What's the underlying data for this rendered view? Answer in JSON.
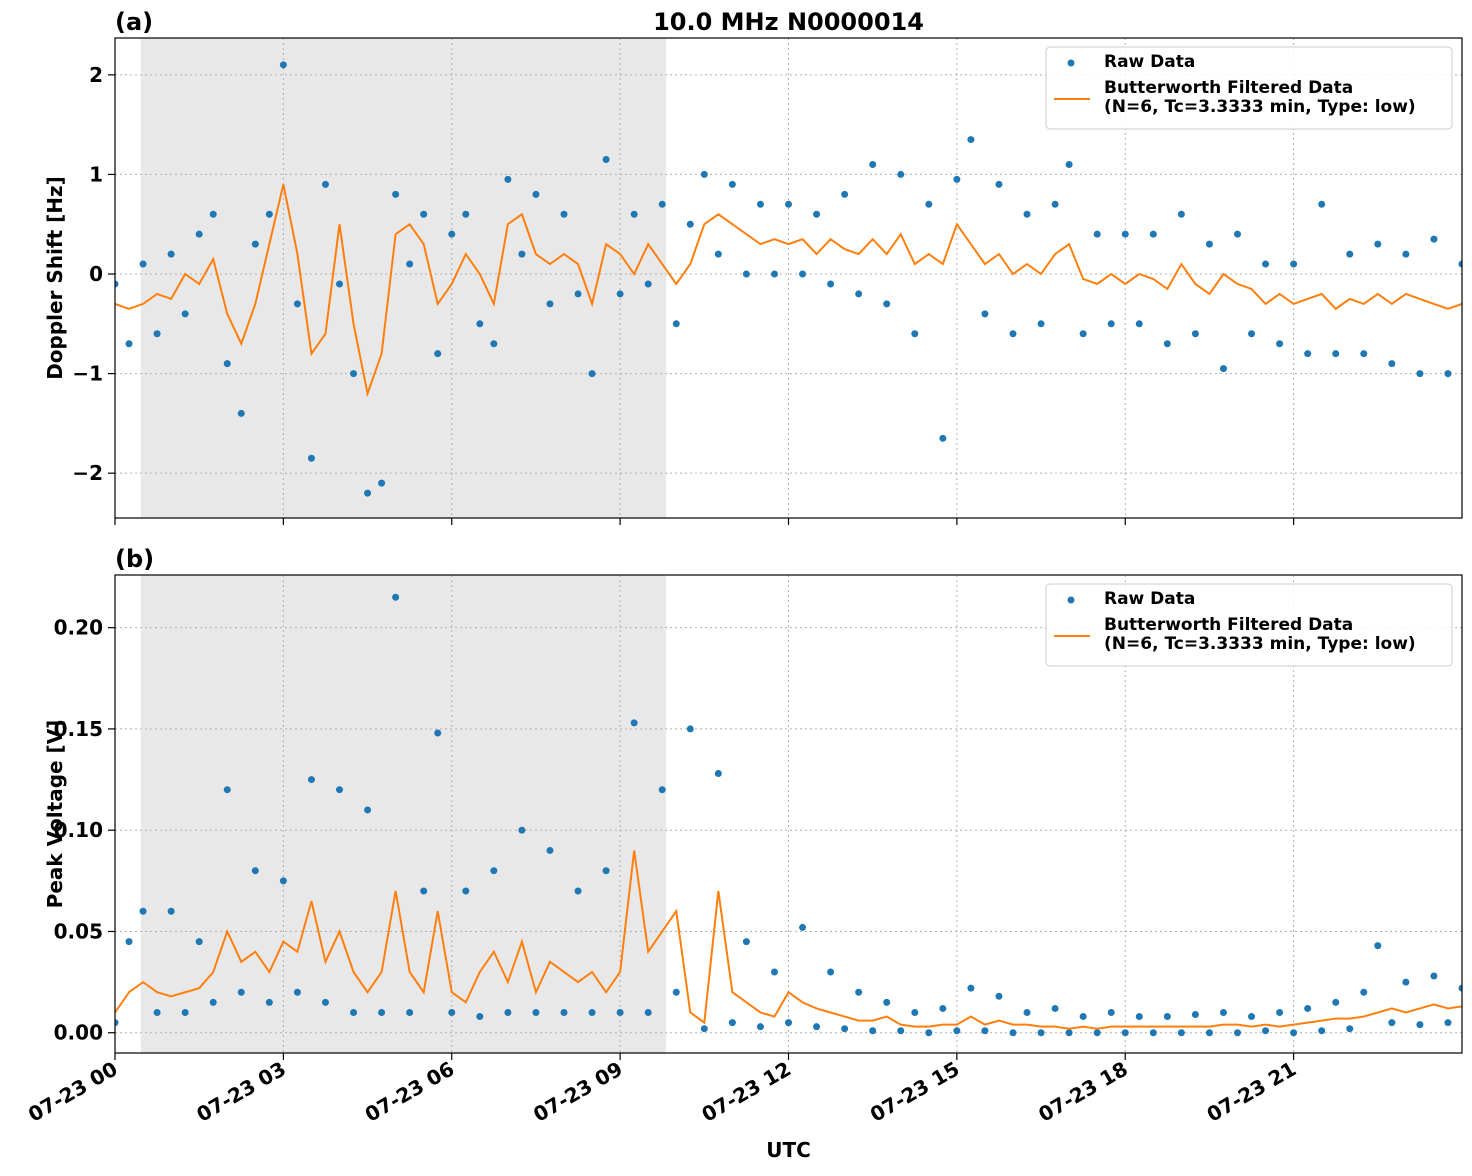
{
  "chart_data": [
    {
      "type": "line",
      "title": "10.0 MHz N0000014",
      "panel_label": "(a)",
      "ylabel": "Doppler Shift [Hz]",
      "xlim": [
        0,
        24
      ],
      "xticks": [
        0,
        3,
        6,
        9,
        12,
        15,
        18,
        21
      ],
      "ylim": [
        -2.45,
        2.37
      ],
      "yticks": [
        {
          "value": -2,
          "label": "−2"
        },
        {
          "value": -1,
          "label": "−1"
        },
        {
          "value": 0,
          "label": "0"
        },
        {
          "value": 1,
          "label": "1"
        },
        {
          "value": 2,
          "label": "2"
        }
      ],
      "grid": true,
      "legend": "upper right",
      "shaded_span": [
        0.46,
        9.82
      ],
      "shade_color": "#e8e8e8",
      "x": [
        0,
        0.25,
        0.5,
        0.75,
        1,
        1.25,
        1.5,
        1.75,
        2,
        2.25,
        2.5,
        2.75,
        3,
        3.25,
        3.5,
        3.75,
        4,
        4.25,
        4.5,
        4.75,
        5,
        5.25,
        5.5,
        5.75,
        6,
        6.25,
        6.5,
        6.75,
        7,
        7.25,
        7.5,
        7.75,
        8,
        8.25,
        8.5,
        8.75,
        9,
        9.25,
        9.5,
        9.75,
        10,
        10.25,
        10.5,
        10.75,
        11,
        11.25,
        11.5,
        11.75,
        12,
        12.25,
        12.5,
        12.75,
        13,
        13.25,
        13.5,
        13.75,
        14,
        14.25,
        14.5,
        14.75,
        15,
        15.25,
        15.5,
        15.75,
        16,
        16.25,
        16.5,
        16.75,
        17,
        17.25,
        17.5,
        17.75,
        18,
        18.25,
        18.5,
        18.75,
        19,
        19.25,
        19.5,
        19.75,
        20,
        20.25,
        20.5,
        20.75,
        21,
        21.25,
        21.5,
        21.75,
        22,
        22.25,
        22.5,
        22.75,
        23,
        23.25,
        23.5,
        23.75,
        24
      ],
      "series": [
        {
          "name": "Raw Data",
          "kind": "scatter",
          "color": "#1f77b4",
          "values": [
            -0.1,
            -0.7,
            0.1,
            -0.6,
            0.2,
            -0.4,
            0.4,
            0.6,
            -0.9,
            -1.4,
            0.3,
            0.6,
            2.1,
            -0.3,
            -1.85,
            0.9,
            -0.1,
            -1.0,
            -2.2,
            -2.1,
            0.8,
            0.1,
            0.6,
            -0.8,
            0.4,
            0.6,
            -0.5,
            -0.7,
            0.95,
            0.2,
            0.8,
            -0.3,
            0.6,
            -0.2,
            -1.0,
            1.15,
            -0.2,
            0.6,
            -0.1,
            0.7,
            -0.5,
            0.5,
            1.0,
            0.2,
            0.9,
            0.0,
            0.7,
            0.0,
            0.7,
            0.0,
            0.6,
            -0.1,
            0.8,
            -0.2,
            1.1,
            -0.3,
            1.0,
            -0.6,
            0.7,
            -1.65,
            0.95,
            1.35,
            -0.4,
            0.9,
            -0.6,
            0.6,
            -0.5,
            0.7,
            1.1,
            -0.6,
            0.4,
            -0.5,
            0.4,
            -0.5,
            0.4,
            -0.7,
            0.6,
            -0.6,
            0.3,
            -0.95,
            0.4,
            -0.6,
            0.1,
            -0.7,
            0.1,
            -0.8,
            0.7,
            -0.8,
            0.2,
            -0.8,
            0.3,
            -0.9,
            0.2,
            -1.0,
            0.35,
            -1.0,
            0.1
          ]
        },
        {
          "name": "Butterworth Filtered Data\n(N=6, Tc=3.3333 min, Type: low)",
          "kind": "line",
          "color": "#ff7f0e",
          "values": [
            -0.3,
            -0.35,
            -0.3,
            -0.2,
            -0.25,
            0.0,
            -0.1,
            0.15,
            -0.4,
            -0.7,
            -0.3,
            0.3,
            0.9,
            0.2,
            -0.8,
            -0.6,
            0.5,
            -0.5,
            -1.2,
            -0.8,
            0.4,
            0.5,
            0.3,
            -0.3,
            -0.1,
            0.2,
            0.0,
            -0.3,
            0.5,
            0.6,
            0.2,
            0.1,
            0.2,
            0.1,
            -0.3,
            0.3,
            0.2,
            0.0,
            0.3,
            0.1,
            -0.1,
            0.1,
            0.5,
            0.6,
            0.5,
            0.4,
            0.3,
            0.35,
            0.3,
            0.35,
            0.2,
            0.35,
            0.25,
            0.2,
            0.35,
            0.2,
            0.4,
            0.1,
            0.2,
            0.1,
            0.5,
            0.3,
            0.1,
            0.2,
            0.0,
            0.1,
            0.0,
            0.2,
            0.3,
            -0.05,
            -0.1,
            0.0,
            -0.1,
            0.0,
            -0.05,
            -0.15,
            0.1,
            -0.1,
            -0.2,
            0.0,
            -0.1,
            -0.15,
            -0.3,
            -0.2,
            -0.3,
            -0.25,
            -0.2,
            -0.35,
            -0.25,
            -0.3,
            -0.2,
            -0.3,
            -0.2,
            -0.25,
            -0.3,
            -0.35,
            -0.3
          ]
        }
      ]
    },
    {
      "type": "line",
      "panel_label": "(b)",
      "ylabel": "Peak Voltage [V]",
      "xlabel": "UTC",
      "xlim": [
        0,
        24
      ],
      "xticks": [
        {
          "value": 0,
          "label": "07-23 00"
        },
        {
          "value": 3,
          "label": "07-23 03"
        },
        {
          "value": 6,
          "label": "07-23 06"
        },
        {
          "value": 9,
          "label": "07-23 09"
        },
        {
          "value": 12,
          "label": "07-23 12"
        },
        {
          "value": 15,
          "label": "07-23 15"
        },
        {
          "value": 18,
          "label": "07-23 18"
        },
        {
          "value": 21,
          "label": "07-23 21"
        }
      ],
      "ylim": [
        -0.01,
        0.226
      ],
      "yticks": [
        {
          "value": 0,
          "label": "0.00"
        },
        {
          "value": 0.05,
          "label": "0.05"
        },
        {
          "value": 0.1,
          "label": "0.10"
        },
        {
          "value": 0.15,
          "label": "0.15"
        },
        {
          "value": 0.2,
          "label": "0.20"
        }
      ],
      "grid": true,
      "legend": "upper right",
      "shaded_span": [
        0.46,
        9.82
      ],
      "shade_color": "#e8e8e8",
      "x": [
        0,
        0.25,
        0.5,
        0.75,
        1,
        1.25,
        1.5,
        1.75,
        2,
        2.25,
        2.5,
        2.75,
        3,
        3.25,
        3.5,
        3.75,
        4,
        4.25,
        4.5,
        4.75,
        5,
        5.25,
        5.5,
        5.75,
        6,
        6.25,
        6.5,
        6.75,
        7,
        7.25,
        7.5,
        7.75,
        8,
        8.25,
        8.5,
        8.75,
        9,
        9.25,
        9.5,
        9.75,
        10,
        10.25,
        10.5,
        10.75,
        11,
        11.25,
        11.5,
        11.75,
        12,
        12.25,
        12.5,
        12.75,
        13,
        13.25,
        13.5,
        13.75,
        14,
        14.25,
        14.5,
        14.75,
        15,
        15.25,
        15.5,
        15.75,
        16,
        16.25,
        16.5,
        16.75,
        17,
        17.25,
        17.5,
        17.75,
        18,
        18.25,
        18.5,
        18.75,
        19,
        19.25,
        19.5,
        19.75,
        20,
        20.25,
        20.5,
        20.75,
        21,
        21.25,
        21.5,
        21.75,
        22,
        22.25,
        22.5,
        22.75,
        23,
        23.25,
        23.5,
        23.75,
        24
      ],
      "series": [
        {
          "name": "Raw Data",
          "kind": "scatter",
          "color": "#1f77b4",
          "values": [
            0.005,
            0.045,
            0.06,
            0.01,
            0.06,
            0.01,
            0.045,
            0.015,
            0.12,
            0.02,
            0.08,
            0.015,
            0.075,
            0.02,
            0.125,
            0.015,
            0.12,
            0.01,
            0.11,
            0.01,
            0.215,
            0.01,
            0.07,
            0.148,
            0.01,
            0.07,
            0.008,
            0.08,
            0.01,
            0.1,
            0.01,
            0.09,
            0.01,
            0.07,
            0.01,
            0.08,
            0.01,
            0.153,
            0.01,
            0.12,
            0.02,
            0.15,
            0.002,
            0.128,
            0.005,
            0.045,
            0.003,
            0.03,
            0.005,
            0.052,
            0.003,
            0.03,
            0.002,
            0.02,
            0.001,
            0.015,
            0.001,
            0.01,
            0.0,
            0.012,
            0.001,
            0.022,
            0.001,
            0.018,
            0.0,
            0.01,
            0.0,
            0.012,
            0.0,
            0.008,
            0.0,
            0.01,
            0.0,
            0.008,
            0.0,
            0.008,
            0.0,
            0.009,
            0.0,
            0.01,
            0.0,
            0.008,
            0.001,
            0.01,
            0.0,
            0.012,
            0.001,
            0.015,
            0.002,
            0.02,
            0.043,
            0.005,
            0.025,
            0.004,
            0.028,
            0.005,
            0.022
          ]
        },
        {
          "name": "Butterworth Filtered Data\n(N=6, Tc=3.3333 min, Type: low)",
          "kind": "line",
          "color": "#ff7f0e",
          "values": [
            0.01,
            0.02,
            0.025,
            0.02,
            0.018,
            0.02,
            0.022,
            0.03,
            0.05,
            0.035,
            0.04,
            0.03,
            0.045,
            0.04,
            0.065,
            0.035,
            0.05,
            0.03,
            0.02,
            0.03,
            0.07,
            0.03,
            0.02,
            0.06,
            0.02,
            0.015,
            0.03,
            0.04,
            0.025,
            0.045,
            0.02,
            0.035,
            0.03,
            0.025,
            0.03,
            0.02,
            0.03,
            0.09,
            0.04,
            0.05,
            0.06,
            0.01,
            0.005,
            0.07,
            0.02,
            0.015,
            0.01,
            0.008,
            0.02,
            0.015,
            0.012,
            0.01,
            0.008,
            0.006,
            0.006,
            0.008,
            0.004,
            0.003,
            0.003,
            0.004,
            0.004,
            0.008,
            0.004,
            0.006,
            0.004,
            0.004,
            0.003,
            0.003,
            0.002,
            0.003,
            0.002,
            0.003,
            0.003,
            0.003,
            0.003,
            0.003,
            0.003,
            0.003,
            0.003,
            0.004,
            0.004,
            0.003,
            0.004,
            0.003,
            0.004,
            0.005,
            0.006,
            0.007,
            0.007,
            0.008,
            0.01,
            0.012,
            0.01,
            0.012,
            0.014,
            0.012,
            0.013
          ]
        }
      ]
    }
  ]
}
